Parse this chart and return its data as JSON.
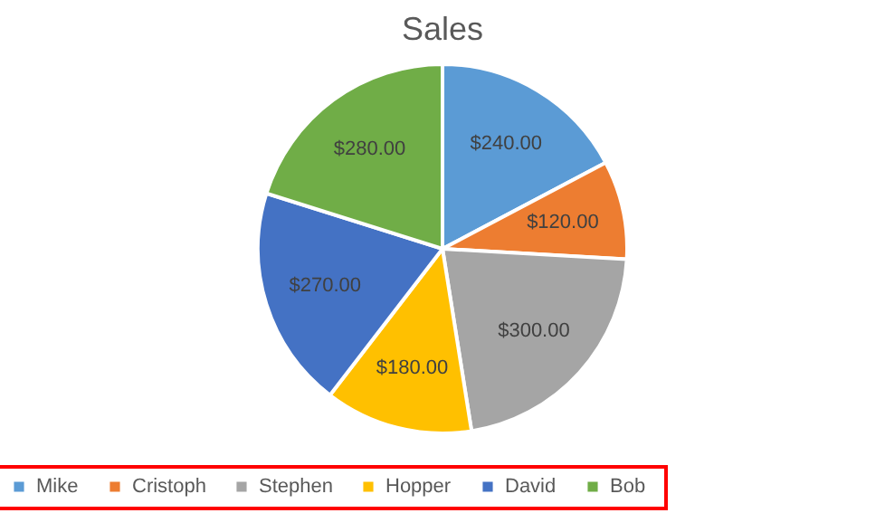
{
  "chart_data": {
    "type": "pie",
    "title": "Sales",
    "categories": [
      "Mike",
      "Cristoph",
      "Stephen",
      "Hopper",
      "David",
      "Bob"
    ],
    "values": [
      240,
      120,
      300,
      180,
      270,
      280
    ],
    "value_labels": [
      "$240.00",
      "$120.00",
      "$300.00",
      "$180.00",
      "$270.00",
      "$280.00"
    ],
    "colors": [
      "#5b9bd5",
      "#ed7d31",
      "#a5a5a5",
      "#ffc000",
      "#4472c4",
      "#70ad47"
    ],
    "legend": "bottom"
  }
}
